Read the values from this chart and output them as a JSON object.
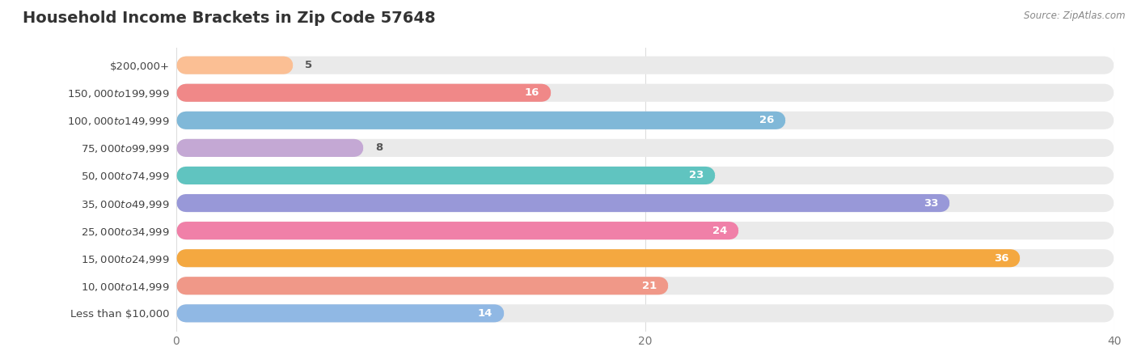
{
  "title": "Household Income Brackets in Zip Code 57648",
  "source": "Source: ZipAtlas.com",
  "categories": [
    "Less than $10,000",
    "$10,000 to $14,999",
    "$15,000 to $24,999",
    "$25,000 to $34,999",
    "$35,000 to $49,999",
    "$50,000 to $74,999",
    "$75,000 to $99,999",
    "$100,000 to $149,999",
    "$150,000 to $199,999",
    "$200,000+"
  ],
  "values": [
    5,
    16,
    26,
    8,
    23,
    33,
    24,
    36,
    21,
    14
  ],
  "bar_colors": [
    "#FBBF94",
    "#F08888",
    "#80B8D8",
    "#C4A8D4",
    "#60C4C0",
    "#9898D8",
    "#F080A8",
    "#F4A840",
    "#F09888",
    "#90B8E4"
  ],
  "bar_bg_color": "#EAEAEA",
  "xlim": [
    0,
    40
  ],
  "xticks": [
    0,
    20,
    40
  ],
  "title_fontsize": 14,
  "label_fontsize": 9.5,
  "tick_fontsize": 10,
  "value_fontsize": 9.5,
  "fig_bg_color": "#FFFFFF",
  "bar_height": 0.65,
  "value_threshold": 10,
  "value_inside_color": "#FFFFFF",
  "value_outside_color": "#555555",
  "category_fontsize": 9.5,
  "category_color": "#444444",
  "title_color": "#333333",
  "source_color": "#888888",
  "grid_color": "#DDDDDD"
}
